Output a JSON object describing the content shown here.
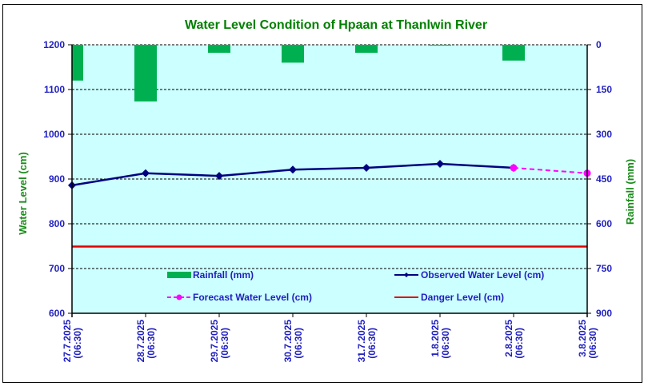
{
  "chart_data": {
    "type": "bar+line",
    "title": "Water Level Condition of Hpaan at Thanlwin River",
    "categories": [
      "27.7.2025 (06:30)",
      "28.7.2025 (06:30)",
      "29.7.2025 (06:30)",
      "30.7.2025 (06:30)",
      "31.7.2025 (06:30)",
      "1.8.2025 (06:30)",
      "2.8.2025 (06:30)",
      "3.8.2025 (06:30)"
    ],
    "category_lines": [
      [
        "27.7.2025",
        "(06:30)"
      ],
      [
        "28.7.2025",
        "(06:30)"
      ],
      [
        "29.7.2025",
        "(06:30)"
      ],
      [
        "30.7.2025",
        "(06:30)"
      ],
      [
        "31.7.2025",
        "(06:30)"
      ],
      [
        "1.8.2025",
        "(06:30)"
      ],
      [
        "2.8.2025",
        "(06:30)"
      ],
      [
        "3.8.2025",
        "(06:30)"
      ]
    ],
    "ylabel": "Water Level (cm)",
    "y2label": "Rainfall (mm)",
    "ylim": [
      600,
      1200
    ],
    "yticks": [
      600,
      700,
      800,
      900,
      1000,
      1100,
      1200
    ],
    "y2lim": [
      0,
      900
    ],
    "y2_inverted": true,
    "y2ticks": [
      0,
      150,
      300,
      450,
      600,
      750,
      900
    ],
    "grid": true,
    "series": [
      {
        "name": "Rainfall (mm)",
        "type": "bar",
        "axis": "y2",
        "color": "#00b050",
        "values": [
          120,
          190,
          27,
          60,
          27,
          3,
          53,
          null
        ]
      },
      {
        "name": "Observed Water Level (cm)",
        "type": "line",
        "axis": "y",
        "color": "#000080",
        "marker": "diamond",
        "values": [
          886,
          913,
          907,
          921,
          925,
          934,
          925,
          null
        ]
      },
      {
        "name": "Forecast Water Level (cm)",
        "type": "line",
        "axis": "y",
        "color": "#ff00ff",
        "marker": "circle",
        "dashed": true,
        "values": [
          null,
          null,
          null,
          null,
          null,
          null,
          925,
          913
        ]
      },
      {
        "name": "Danger Level (cm)",
        "type": "line",
        "axis": "y",
        "color": "#e00000",
        "values": [
          749,
          749,
          749,
          749,
          749,
          749,
          749,
          749
        ]
      }
    ],
    "legend": {
      "placement": "inside-bottom",
      "items": [
        "Rainfall (mm)",
        "Observed Water Level (cm)",
        "Forecast Water Level (cm)",
        "Danger Level (cm)"
      ]
    },
    "plot_background": "#ccffff"
  }
}
